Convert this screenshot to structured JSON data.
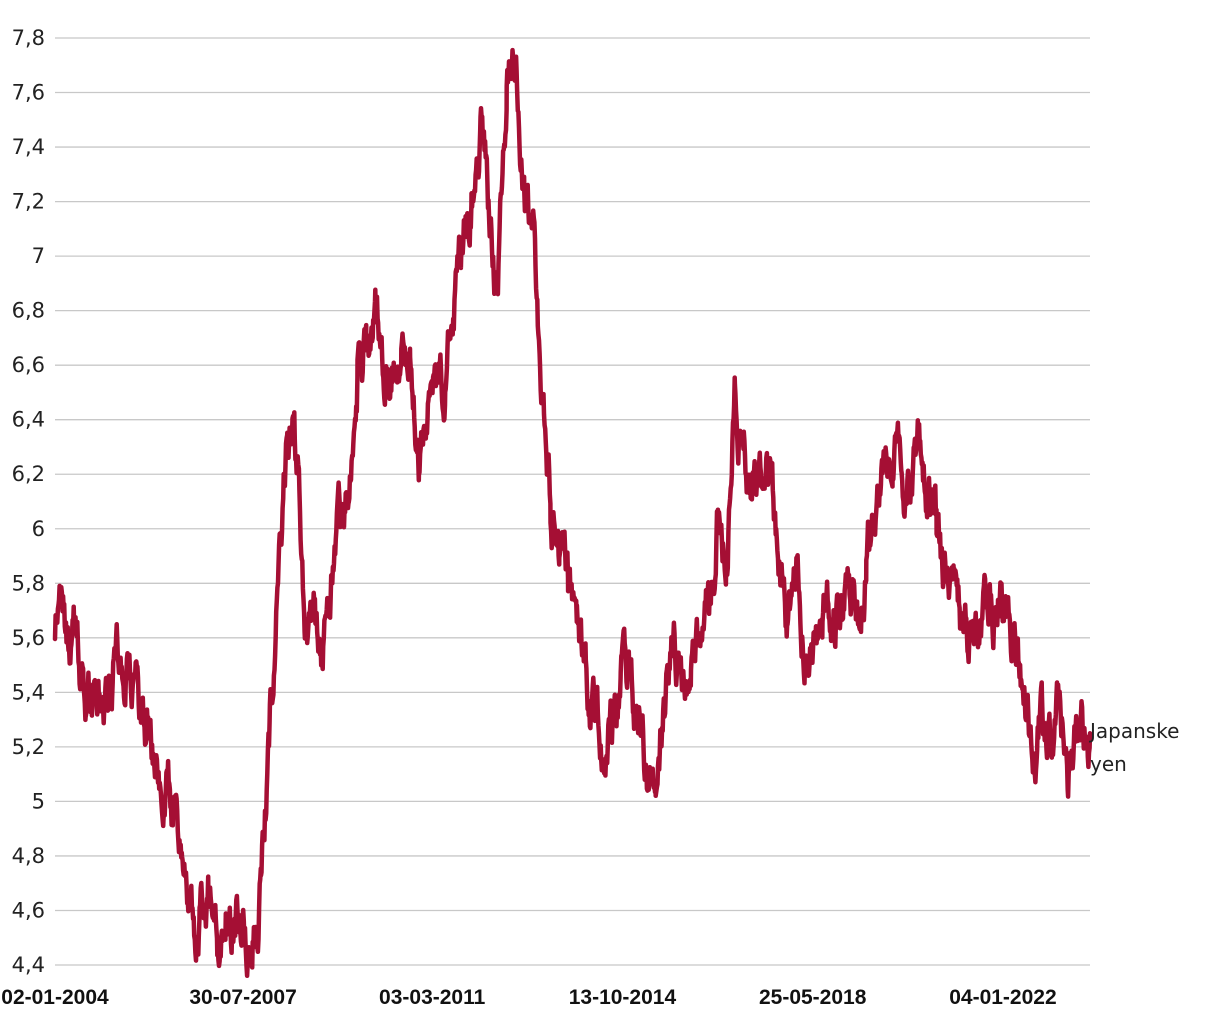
{
  "chart_data": {
    "type": "line",
    "title": "",
    "xlabel": "",
    "ylabel": "",
    "ylim": [
      4.4,
      7.8
    ],
    "yticks": [
      "4,4",
      "4,6",
      "4,8",
      "5",
      "5,2",
      "5,4",
      "5,6",
      "5,8",
      "6",
      "6,2",
      "6,4",
      "6,6",
      "6,8",
      "7",
      "7,2",
      "7,4",
      "7,6",
      "7,8"
    ],
    "yticks_values": [
      4.4,
      4.6,
      4.8,
      5.0,
      5.2,
      5.4,
      5.6,
      5.8,
      6.0,
      6.2,
      6.4,
      6.6,
      6.8,
      7.0,
      7.2,
      7.4,
      7.6,
      7.8
    ],
    "xticks": [
      "02-01-2004",
      "30-07-2007",
      "03-03-2011",
      "13-10-2014",
      "25-05-2018",
      "04-01-2022"
    ],
    "xlim": [
      "2004-01-02",
      "2023-08-31"
    ],
    "grid": true,
    "series_color": "#a50f34",
    "series": [
      {
        "name": "Japanske yen",
        "label_lines": [
          "Japanske",
          "yen"
        ],
        "x": [
          "2004-01-02",
          "2004-02-15",
          "2004-04-01",
          "2004-06-01",
          "2004-08-01",
          "2004-10-01",
          "2004-12-01",
          "2005-02-01",
          "2005-04-01",
          "2005-06-01",
          "2005-08-01",
          "2005-10-01",
          "2005-12-01",
          "2006-02-01",
          "2006-04-01",
          "2006-06-01",
          "2006-08-01",
          "2006-10-01",
          "2006-12-01",
          "2007-02-01",
          "2007-04-01",
          "2007-06-01",
          "2007-08-15",
          "2007-10-01",
          "2007-12-01",
          "2008-02-01",
          "2008-04-01",
          "2008-06-01",
          "2008-07-15",
          "2008-08-20",
          "2008-10-01",
          "2008-11-01",
          "2008-12-01",
          "2009-01-10",
          "2009-02-01",
          "2009-03-01",
          "2009-04-01",
          "2009-06-01",
          "2009-08-01",
          "2009-10-01",
          "2009-12-01",
          "2010-02-01",
          "2010-04-01",
          "2010-06-01",
          "2010-08-01",
          "2010-10-01",
          "2010-12-01",
          "2011-02-01",
          "2011-04-01",
          "2011-06-01",
          "2011-08-01",
          "2011-10-01",
          "2011-12-01",
          "2012-02-01",
          "2012-04-01",
          "2012-06-01",
          "2012-08-01",
          "2012-10-01",
          "2012-12-01",
          "2013-02-01",
          "2013-04-01",
          "2013-06-01",
          "2013-08-01",
          "2013-10-01",
          "2013-12-01",
          "2014-02-01",
          "2014-04-01",
          "2014-06-01",
          "2014-08-01",
          "2014-10-01",
          "2014-12-01",
          "2015-02-01",
          "2015-04-01",
          "2015-06-01",
          "2015-08-01",
          "2015-10-01",
          "2015-12-01",
          "2016-02-01",
          "2016-04-01",
          "2016-06-01",
          "2016-07-10",
          "2016-08-01",
          "2016-10-01",
          "2016-12-01",
          "2017-02-01",
          "2017-04-01",
          "2017-06-01",
          "2017-08-01",
          "2017-10-01",
          "2017-12-01",
          "2018-02-01",
          "2018-04-01",
          "2018-06-01",
          "2018-08-01",
          "2018-10-01",
          "2018-12-01",
          "2019-02-01",
          "2019-04-01",
          "2019-06-01",
          "2019-08-01",
          "2019-10-01",
          "2019-12-01",
          "2020-02-01",
          "2020-04-01",
          "2020-06-01",
          "2020-08-01",
          "2020-10-01",
          "2020-12-01",
          "2021-02-01",
          "2021-04-01",
          "2021-06-01",
          "2021-08-01",
          "2021-10-01",
          "2021-12-01",
          "2022-02-01",
          "2022-04-01",
          "2022-06-01",
          "2022-08-01",
          "2022-10-01",
          "2022-12-01",
          "2023-02-01",
          "2023-04-01",
          "2023-06-01",
          "2023-08-31"
        ],
        "y": [
          5.55,
          5.85,
          5.55,
          5.6,
          5.45,
          5.45,
          5.4,
          5.35,
          5.65,
          5.45,
          5.4,
          5.3,
          5.2,
          5.1,
          5.0,
          4.85,
          4.7,
          4.5,
          4.7,
          4.55,
          4.7,
          4.55,
          4.5,
          4.45,
          4.75,
          5.25,
          5.9,
          6.3,
          6.4,
          6.1,
          5.7,
          5.6,
          5.65,
          5.55,
          5.5,
          5.6,
          5.75,
          6.0,
          6.1,
          6.6,
          6.7,
          6.8,
          6.55,
          6.6,
          6.55,
          6.7,
          6.3,
          6.4,
          6.5,
          6.6,
          6.85,
          7.05,
          7.25,
          7.4,
          7.15,
          6.9,
          7.6,
          7.75,
          7.3,
          7.1,
          6.6,
          6.1,
          5.9,
          5.8,
          5.7,
          5.5,
          5.3,
          5.25,
          5.3,
          5.4,
          5.45,
          5.3,
          5.15,
          5.1,
          5.35,
          5.55,
          5.5,
          5.45,
          5.6,
          5.7,
          5.8,
          6.05,
          5.9,
          6.6,
          6.3,
          6.1,
          6.15,
          6.2,
          5.9,
          5.65,
          5.75,
          5.55,
          5.55,
          5.65,
          5.7,
          5.7,
          5.8,
          5.75,
          5.9,
          6.05,
          6.2,
          6.35,
          6.2,
          6.2,
          6.3,
          6.1,
          5.95,
          5.85,
          5.8,
          5.65,
          5.6,
          5.7,
          5.75,
          5.7,
          5.7,
          5.55,
          5.4,
          5.2,
          5.3,
          5.2,
          5.4,
          5.1,
          5.25,
          5.25
        ]
      }
    ]
  }
}
